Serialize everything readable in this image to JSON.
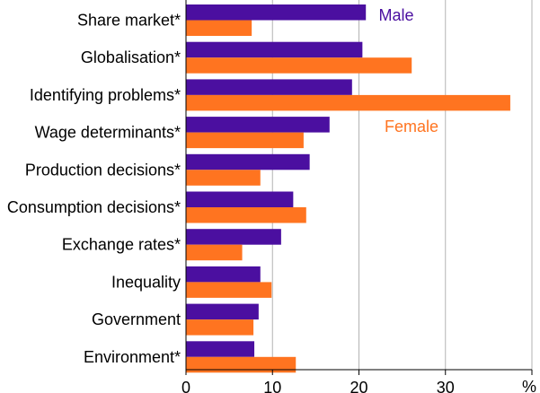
{
  "chart_data": {
    "type": "bar",
    "orientation": "horizontal",
    "categories": [
      "Share market*",
      "Globalisation*",
      "Identifying problems*",
      "Wage determinants*",
      "Production decisions*",
      "Consumption decisions*",
      "Exchange rates*",
      "Inequality",
      "Government",
      "Environment*"
    ],
    "series": [
      {
        "name": "Male",
        "color": "#4B0FA0",
        "values": [
          20.8,
          20.4,
          19.2,
          16.6,
          14.3,
          12.4,
          11.0,
          8.6,
          8.4,
          7.9
        ]
      },
      {
        "name": "Female",
        "color": "#FF7420",
        "values": [
          7.6,
          26.1,
          37.5,
          13.6,
          8.6,
          13.9,
          6.5,
          9.9,
          7.8,
          12.7
        ]
      }
    ],
    "xlim": [
      0,
      40
    ],
    "xticks": [
      0,
      10,
      20,
      30
    ],
    "xlabel": "%",
    "grid": true,
    "legend": "inline"
  }
}
